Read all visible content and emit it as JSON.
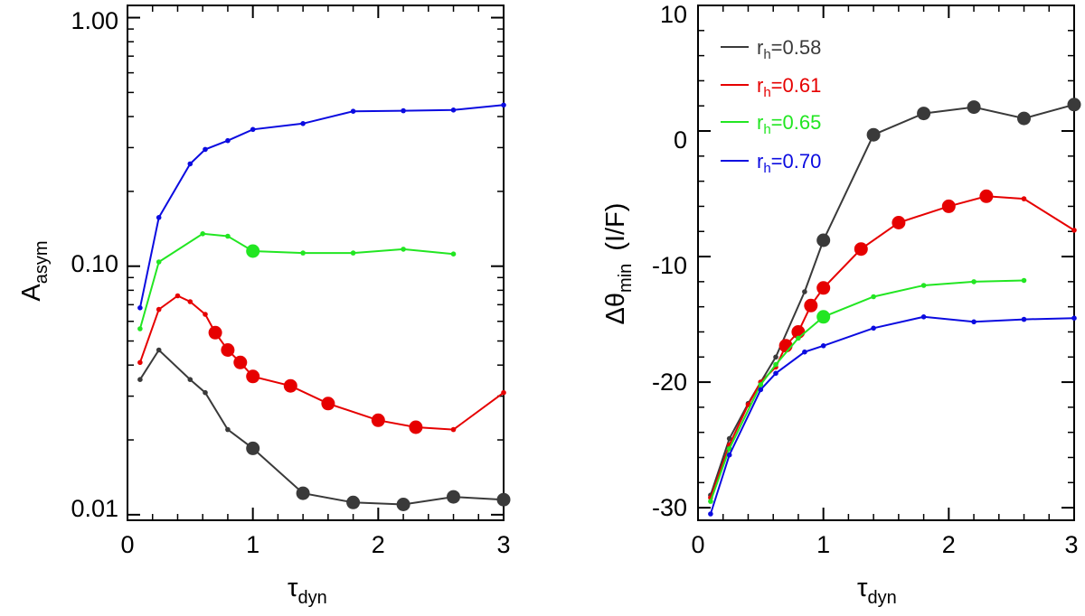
{
  "chart_data": [
    {
      "type": "line",
      "panel": "left",
      "xlabel": "τ",
      "xlabel_sub": "dyn",
      "ylabel": "A",
      "ylabel_sub": "asym",
      "yscale": "log",
      "xlim": [
        0,
        3
      ],
      "ylim": [
        0.0095,
        1.12
      ],
      "x_ticks": [
        0,
        1,
        2,
        3
      ],
      "x_tick_labels": [
        "0",
        "1",
        "2",
        "3"
      ],
      "y_ticks": [
        0.01,
        0.1,
        1.0
      ],
      "y_tick_labels": [
        "0.01",
        "0.10",
        "1.00"
      ],
      "series": [
        {
          "name": "r_h=0.58",
          "color": "#3a3a3a",
          "x": [
            0.1,
            0.25,
            0.5,
            0.62,
            0.8,
            1.0,
            1.4,
            1.8,
            2.2,
            2.6,
            3.0
          ],
          "y": [
            0.035,
            0.046,
            0.035,
            0.031,
            0.022,
            0.0185,
            0.0122,
            0.0112,
            0.011,
            0.0118,
            0.0115
          ],
          "large": [
            false,
            false,
            false,
            false,
            false,
            true,
            true,
            true,
            true,
            true,
            true
          ]
        },
        {
          "name": "r_h=0.61",
          "color": "#e60000",
          "x": [
            0.1,
            0.25,
            0.4,
            0.5,
            0.62,
            0.7,
            0.8,
            0.9,
            1.0,
            1.3,
            1.6,
            2.0,
            2.3,
            2.6,
            3.0
          ],
          "y": [
            0.041,
            0.067,
            0.076,
            0.072,
            0.064,
            0.054,
            0.046,
            0.041,
            0.036,
            0.033,
            0.028,
            0.024,
            0.0225,
            0.022,
            0.031
          ],
          "large": [
            false,
            false,
            false,
            false,
            false,
            true,
            true,
            true,
            true,
            true,
            true,
            true,
            true,
            false,
            false
          ]
        },
        {
          "name": "r_h=0.65",
          "color": "#22e622",
          "x": [
            0.1,
            0.25,
            0.6,
            0.8,
            1.0,
            1.4,
            1.8,
            2.2,
            2.6
          ],
          "y": [
            0.056,
            0.104,
            0.135,
            0.132,
            0.115,
            0.113,
            0.113,
            0.117,
            0.112
          ],
          "large": [
            false,
            false,
            false,
            false,
            true,
            false,
            false,
            false,
            false
          ]
        },
        {
          "name": "r_h=0.70",
          "color": "#0b0be0",
          "x": [
            0.1,
            0.25,
            0.5,
            0.62,
            0.8,
            1.0,
            1.4,
            1.8,
            2.2,
            2.6,
            3.0
          ],
          "y": [
            0.068,
            0.157,
            0.258,
            0.295,
            0.32,
            0.355,
            0.375,
            0.42,
            0.422,
            0.425,
            0.445
          ],
          "large": [
            false,
            false,
            false,
            false,
            false,
            false,
            false,
            false,
            false,
            false,
            false
          ]
        }
      ]
    },
    {
      "type": "line",
      "panel": "right",
      "xlabel": "τ",
      "xlabel_sub": "dyn",
      "ylabel": "Δθ",
      "ylabel_sub": "min",
      "ylabel_suffix": "(I/F)",
      "yscale": "linear",
      "xlim": [
        0,
        3
      ],
      "ylim": [
        -31,
        10
      ],
      "x_ticks": [
        0,
        1,
        2,
        3
      ],
      "x_tick_labels": [
        "0",
        "1",
        "2",
        "3"
      ],
      "y_ticks": [
        -30,
        -20,
        -10,
        0,
        10
      ],
      "y_tick_labels": [
        "-30",
        "-20",
        "-10",
        "0",
        "10"
      ],
      "legend": {
        "position": "top-left",
        "entries": [
          {
            "prefix": "r",
            "sub": "h",
            "value": "=0.58",
            "color": "#3a3a3a"
          },
          {
            "prefix": "r",
            "sub": "h",
            "value": "=0.61",
            "color": "#e60000"
          },
          {
            "prefix": "r",
            "sub": "h",
            "value": "=0.65",
            "color": "#22e622"
          },
          {
            "prefix": "r",
            "sub": "h",
            "value": "=0.70",
            "color": "#0b0be0"
          }
        ]
      },
      "series": [
        {
          "name": "r_h=0.58",
          "color": "#3a3a3a",
          "x": [
            0.1,
            0.25,
            0.4,
            0.5,
            0.62,
            0.85,
            1.0,
            1.4,
            1.8,
            2.2,
            2.6,
            3.0
          ],
          "y": [
            -29.0,
            -24.5,
            -21.7,
            -20.0,
            -18.0,
            -12.8,
            -8.7,
            -0.3,
            1.4,
            1.9,
            1.0,
            2.1
          ],
          "large": [
            false,
            false,
            false,
            false,
            false,
            false,
            true,
            true,
            true,
            true,
            true,
            true
          ]
        },
        {
          "name": "r_h=0.61",
          "color": "#e60000",
          "x": [
            0.1,
            0.25,
            0.4,
            0.5,
            0.62,
            0.7,
            0.8,
            0.9,
            1.0,
            1.3,
            1.6,
            2.0,
            2.3,
            2.6,
            3.0
          ],
          "y": [
            -29.2,
            -25.0,
            -21.8,
            -20.0,
            -18.8,
            -17.1,
            -16.0,
            -13.9,
            -12.5,
            -9.4,
            -7.3,
            -6.0,
            -5.2,
            -5.4,
            -7.9
          ],
          "large": [
            false,
            false,
            false,
            false,
            false,
            true,
            true,
            true,
            true,
            true,
            true,
            true,
            true,
            false,
            false
          ]
        },
        {
          "name": "r_h=0.65",
          "color": "#22e622",
          "x": [
            0.1,
            0.25,
            0.5,
            0.62,
            0.8,
            1.0,
            1.4,
            1.8,
            2.2,
            2.6
          ],
          "y": [
            -29.5,
            -25.3,
            -20.2,
            -18.6,
            -16.5,
            -14.8,
            -13.2,
            -12.3,
            -12.0,
            -11.9
          ],
          "large": [
            false,
            false,
            false,
            false,
            false,
            true,
            false,
            false,
            false,
            false
          ]
        },
        {
          "name": "r_h=0.70",
          "color": "#0b0be0",
          "x": [
            0.1,
            0.25,
            0.5,
            0.62,
            0.85,
            1.0,
            1.4,
            1.8,
            2.2,
            2.6,
            3.0
          ],
          "y": [
            -30.5,
            -25.8,
            -20.6,
            -19.3,
            -17.6,
            -17.1,
            -15.7,
            -14.8,
            -15.2,
            -15.0,
            -14.9
          ],
          "large": [
            false,
            false,
            false,
            false,
            false,
            false,
            false,
            false,
            false,
            false,
            false
          ]
        }
      ]
    }
  ]
}
